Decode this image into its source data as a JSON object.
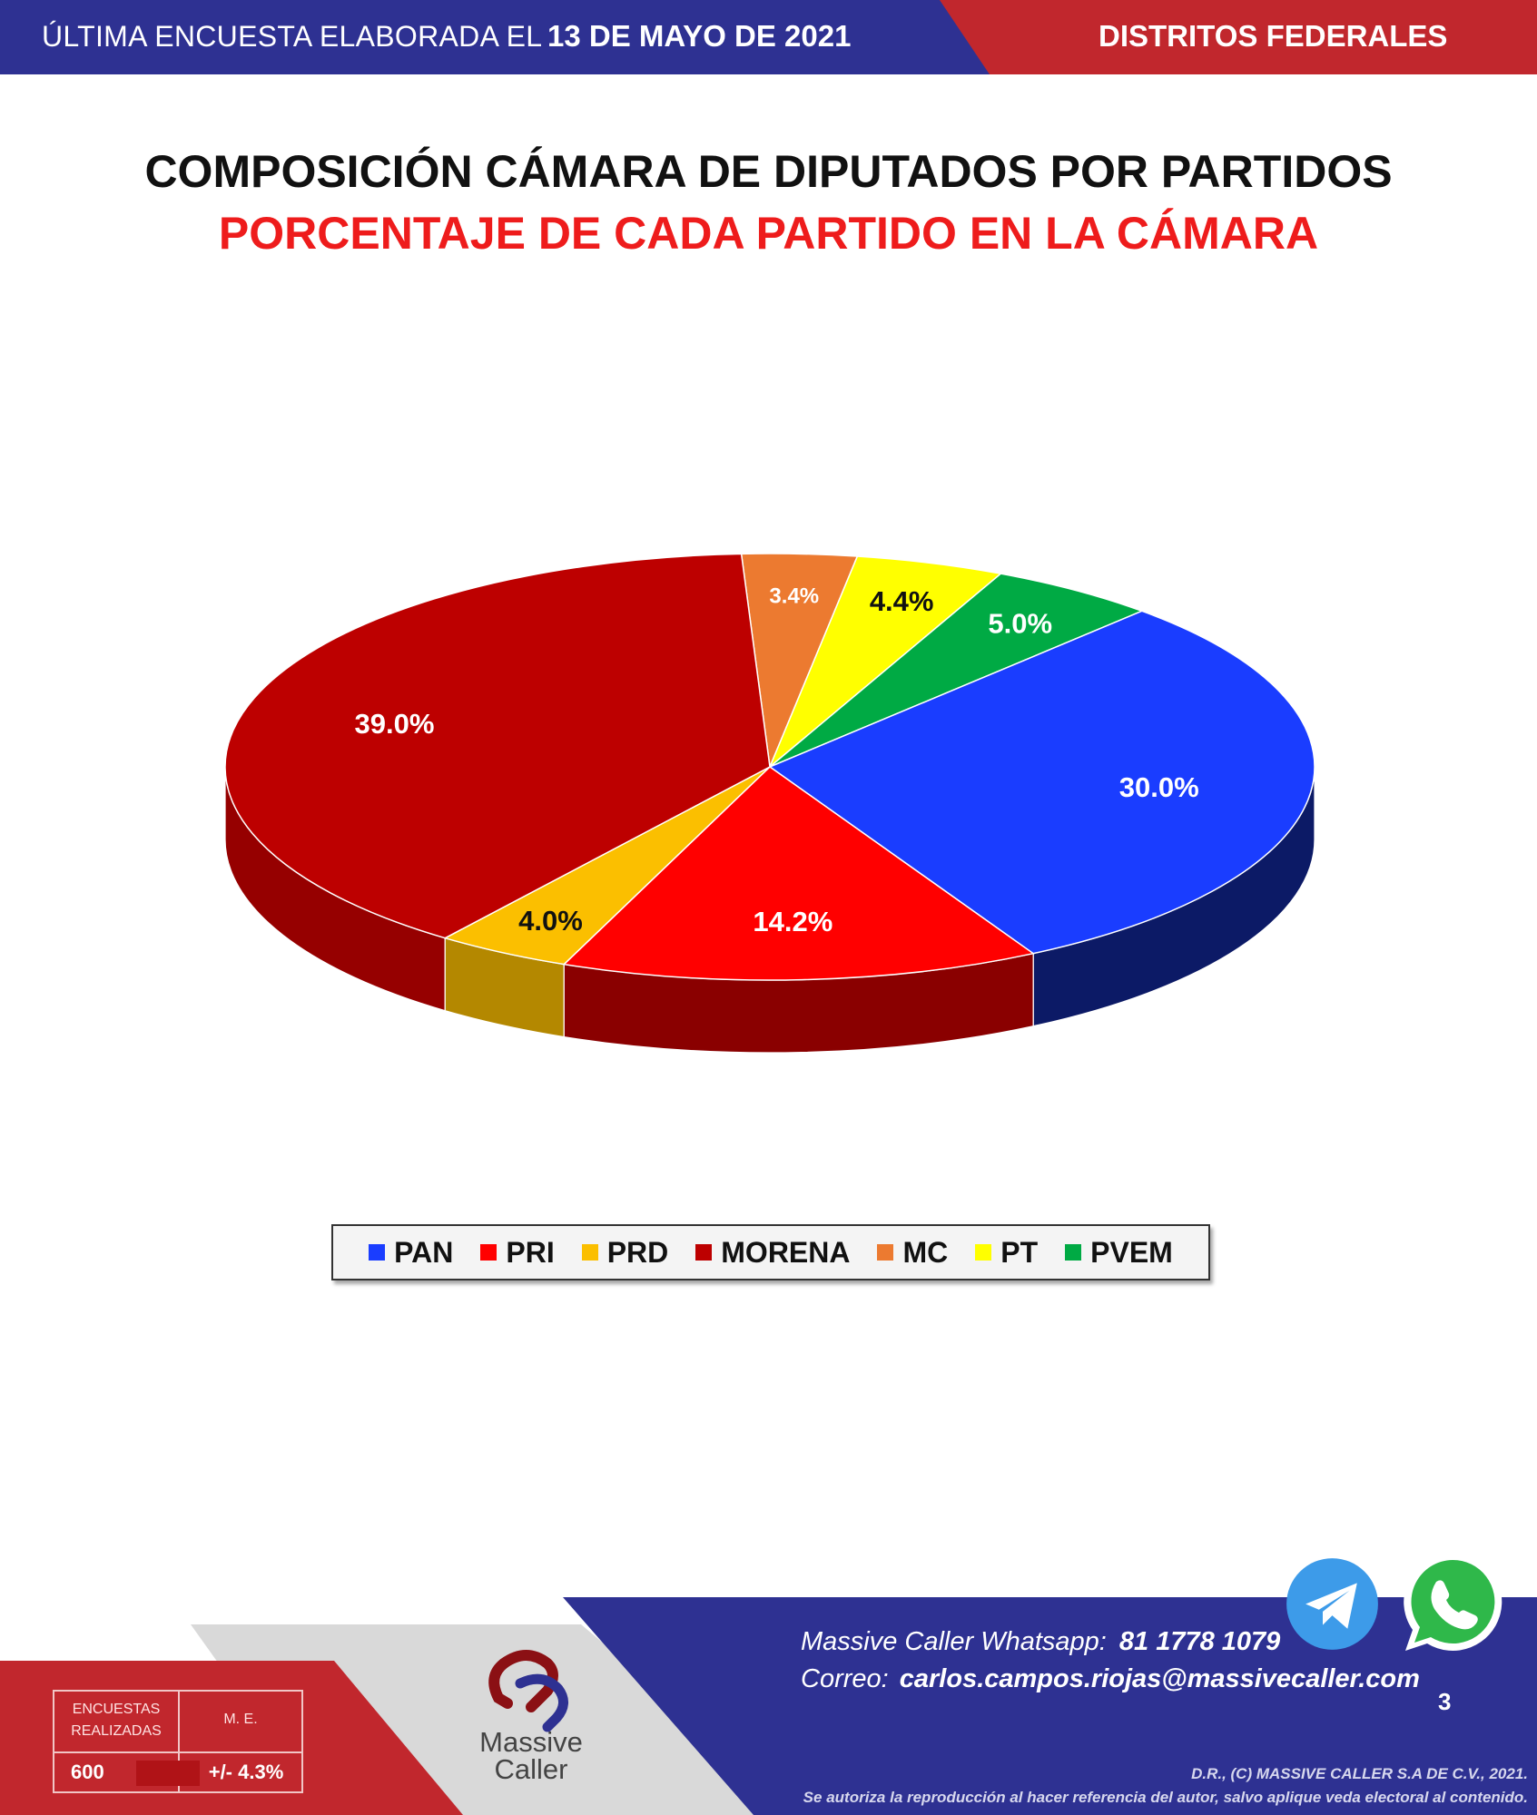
{
  "header": {
    "prefix": "ÚLTIMA ENCUESTA ELABORADA EL",
    "date": "13 DE MAYO DE 2021",
    "section": "DISTRITOS FEDERALES"
  },
  "titles": {
    "main": "COMPOSICIÓN CÁMARA DE DIPUTADOS POR PARTIDOS",
    "sub": "PORCENTAJE DE CADA PARTIDO EN LA CÁMARA"
  },
  "chart_data": {
    "type": "pie",
    "style": "3d",
    "legend_position": "bottom",
    "categories": [
      "PAN",
      "PRI",
      "PRD",
      "MORENA",
      "MC",
      "PT",
      "PVEM"
    ],
    "values": [
      30.0,
      14.2,
      4.0,
      39.0,
      3.4,
      4.4,
      5.0
    ],
    "labels": [
      "30.0%",
      "14.2%",
      "4.0%",
      "39.0%",
      "3.4%",
      "4.4%",
      "5.0%"
    ],
    "colors": [
      "#1a3dff",
      "#ff0000",
      "#fbbf00",
      "#bd0000",
      "#ec7a30",
      "#ffff00",
      "#00aa44"
    ],
    "side_colors": [
      "#0c1a66",
      "#8a0000",
      "#b48800",
      "#960000",
      "#a8521c",
      "#b8b800",
      "#007a30"
    ],
    "label_colors": [
      "#ffffff",
      "#ffffff",
      "#111111",
      "#ffffff",
      "#ffffff",
      "#111111",
      "#ffffff"
    ]
  },
  "legend": {
    "items": [
      {
        "label": "PAN",
        "color": "#1a3dff"
      },
      {
        "label": "PRI",
        "color": "#ff0000"
      },
      {
        "label": "PRD",
        "color": "#fbbf00"
      },
      {
        "label": "MORENA",
        "color": "#bd0000"
      },
      {
        "label": "MC",
        "color": "#ec7a30"
      },
      {
        "label": "PT",
        "color": "#ffff00"
      },
      {
        "label": "PVEM",
        "color": "#00aa44"
      }
    ]
  },
  "stats": {
    "surveys_label": "ENCUESTAS REALIZADAS",
    "surveys_value": "600",
    "margin_label": "M. E.",
    "margin_value": "+/- 4.3%"
  },
  "logo": {
    "line1": "Massive",
    "line2": "Caller"
  },
  "contact": {
    "whatsapp_label": "Massive Caller Whatsapp:",
    "whatsapp_value": "81 1778 1079",
    "email_label": "Correo:",
    "email_value": "carlos.campos.riojas@massivecaller.com"
  },
  "page_number": "3",
  "copyright": {
    "line1": "D.R., (C) MASSIVE CALLER S.A DE C.V., 2021.",
    "line2": "Se autoriza la reproducción al hacer referencia del autor, salvo aplique veda electoral al contenido."
  },
  "icons": {
    "telegram": "telegram-icon",
    "whatsapp": "whatsapp-icon"
  }
}
